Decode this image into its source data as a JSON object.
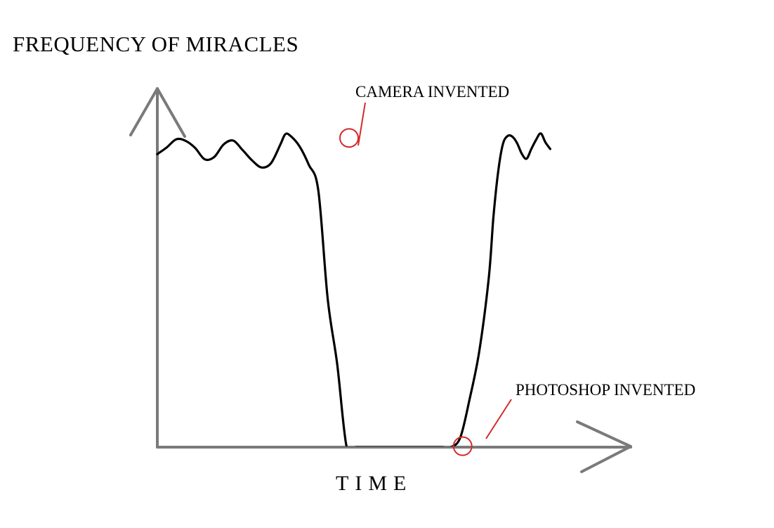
{
  "chart_data": {
    "type": "line",
    "title": "",
    "ylabel": "FREQUENCY OF MIRACLES",
    "xlabel": "TIME",
    "xlim": [
      0,
      100
    ],
    "ylim": [
      0,
      100
    ],
    "grid": false,
    "legend": "none",
    "series": [
      {
        "values_x": [
          0,
          2,
          4,
          6,
          8,
          10,
          12,
          14,
          16,
          18,
          20,
          22,
          24,
          26,
          27,
          28,
          30,
          32,
          34,
          36,
          38,
          40,
          42,
          44,
          46,
          48,
          50,
          52,
          54,
          56,
          58,
          60,
          62,
          64,
          66,
          68,
          70,
          71,
          72,
          73,
          74,
          75,
          76,
          77,
          78,
          79,
          80,
          81,
          82,
          83
        ],
        "values_y": [
          90.4,
          92.5,
          95.0,
          94.5,
          92.3,
          88.8,
          89.5,
          93.4,
          94.6,
          91.7,
          88.5,
          86.3,
          87.6,
          93.4,
          96.5,
          96.2,
          92.9,
          87.1,
          79.2,
          45.7,
          25.6,
          0.0,
          0.0,
          0.0,
          0.0,
          0.0,
          0.0,
          0.0,
          0.0,
          0.0,
          0.0,
          0.0,
          0.0,
          3.0,
          15.0,
          29.5,
          52.0,
          71.0,
          85.0,
          93.5,
          96.0,
          95.8,
          93.8,
          90.5,
          89.0,
          92.0,
          94.8,
          96.8,
          94.0,
          92.0
        ]
      }
    ],
    "annotations": [
      {
        "label": "CAMERA INVENTED",
        "x": 40.5,
        "y": 95.4
      },
      {
        "label": "PHOTOSHOP INVENTED",
        "x": 64.5,
        "y": 0.3
      }
    ],
    "colors": {
      "axis": "#7a7a7a",
      "series": "#000000",
      "annotation": "#d42a2a"
    }
  }
}
